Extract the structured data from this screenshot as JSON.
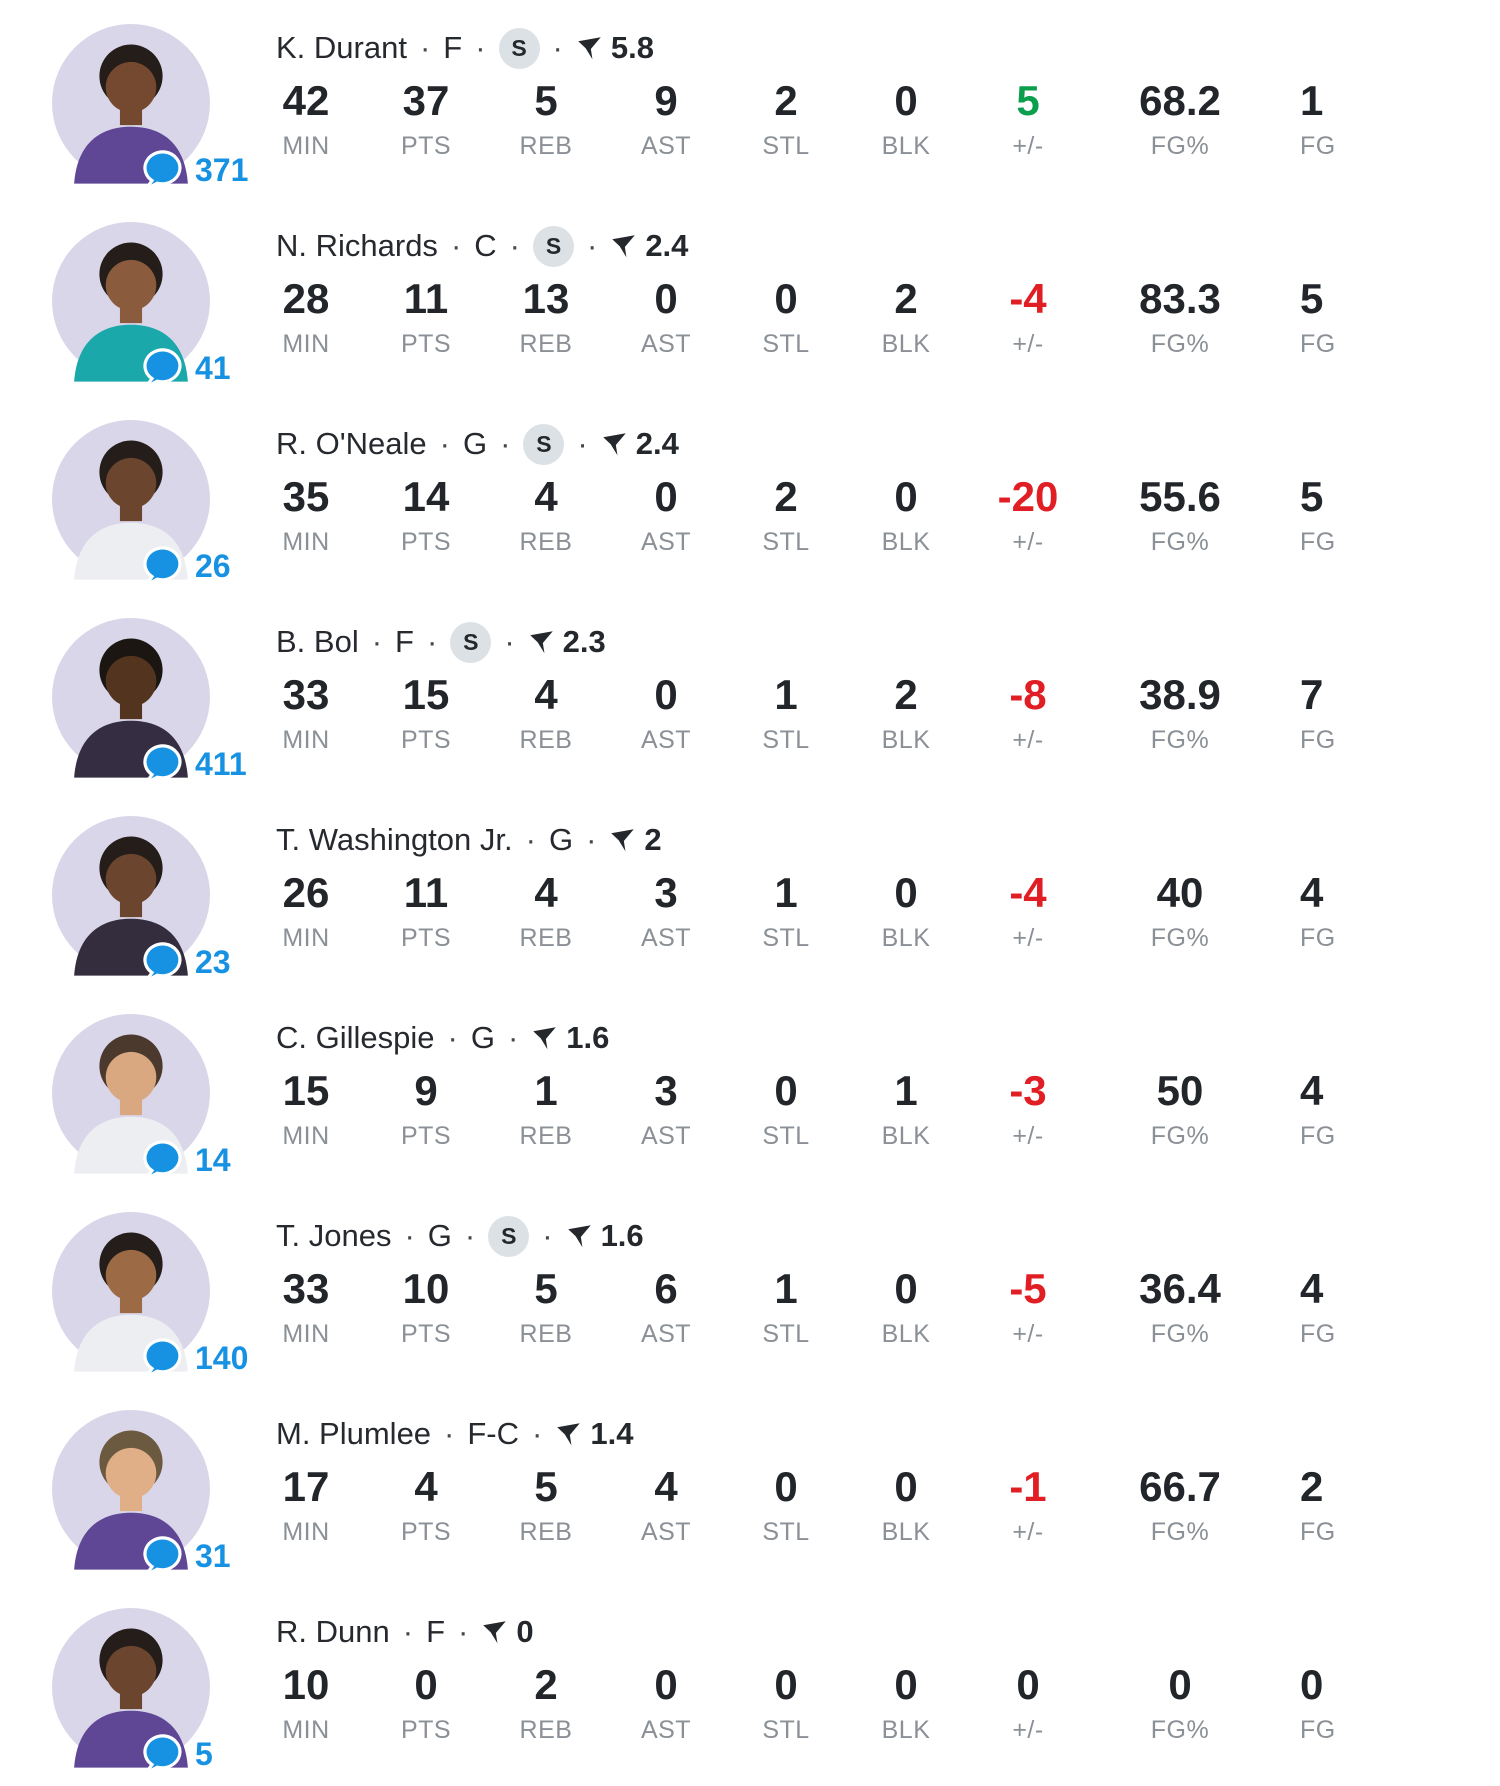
{
  "colors": {
    "positive": "#0b9e4d",
    "negative": "#e01e24",
    "comment_blue": "#1792e3",
    "label_gray": "#8a9096",
    "stat_dark": "#222529",
    "avatar_bg": "#d9d6e9",
    "starter_badge_bg": "#dbe1e5"
  },
  "starter_badge_label": "S",
  "separator": "·",
  "columns": [
    "MIN",
    "PTS",
    "REB",
    "AST",
    "STL",
    "BLK",
    "+/-",
    "FG%",
    "FG"
  ],
  "players": [
    {
      "name": "K. Durant",
      "position": "F",
      "starter": true,
      "fantasy": "5.8",
      "comments": "371",
      "pm_state": "pos",
      "values": [
        "42",
        "37",
        "5",
        "9",
        "2",
        "0",
        "5",
        "68.2",
        "1"
      ],
      "avatar": {
        "skin": "#74492f",
        "hair": "#241d19",
        "jersey": "#5f4796"
      }
    },
    {
      "name": "N. Richards",
      "position": "C",
      "starter": true,
      "fantasy": "2.4",
      "comments": "41",
      "pm_state": "neg",
      "values": [
        "28",
        "11",
        "13",
        "0",
        "0",
        "2",
        "-4",
        "83.3",
        "5"
      ],
      "avatar": {
        "skin": "#8a5c3d",
        "hair": "#241d19",
        "jersey": "#1ba8ab"
      }
    },
    {
      "name": "R. O'Neale",
      "position": "G",
      "starter": true,
      "fantasy": "2.4",
      "comments": "26",
      "pm_state": "neg",
      "values": [
        "35",
        "14",
        "4",
        "0",
        "2",
        "0",
        "-20",
        "55.6",
        "5"
      ],
      "avatar": {
        "skin": "#6b452e",
        "hair": "#241d19",
        "jersey": "#edeef2"
      }
    },
    {
      "name": "B. Bol",
      "position": "F",
      "starter": true,
      "fantasy": "2.3",
      "comments": "411",
      "pm_state": "neg",
      "values": [
        "33",
        "15",
        "4",
        "0",
        "1",
        "2",
        "-8",
        "38.9",
        "7"
      ],
      "avatar": {
        "skin": "#53351f",
        "hair": "#1c1613",
        "jersey": "#352e42"
      }
    },
    {
      "name": "T. Washington Jr.",
      "position": "G",
      "starter": false,
      "fantasy": "2",
      "comments": "23",
      "pm_state": "neg",
      "values": [
        "26",
        "11",
        "4",
        "3",
        "1",
        "0",
        "-4",
        "40",
        "4"
      ],
      "avatar": {
        "skin": "#6b452e",
        "hair": "#241d19",
        "jersey": "#332d3d"
      }
    },
    {
      "name": "C. Gillespie",
      "position": "G",
      "starter": false,
      "fantasy": "1.6",
      "comments": "14",
      "pm_state": "neg",
      "values": [
        "15",
        "9",
        "1",
        "3",
        "0",
        "1",
        "-3",
        "50",
        "4"
      ],
      "avatar": {
        "skin": "#d9a880",
        "hair": "#4a392c",
        "jersey": "#edeef2"
      }
    },
    {
      "name": "T. Jones",
      "position": "G",
      "starter": true,
      "fantasy": "1.6",
      "comments": "140",
      "pm_state": "neg",
      "values": [
        "33",
        "10",
        "5",
        "6",
        "1",
        "0",
        "-5",
        "36.4",
        "4"
      ],
      "avatar": {
        "skin": "#9c6a44",
        "hair": "#241d19",
        "jersey": "#edeef2"
      }
    },
    {
      "name": "M. Plumlee",
      "position": "F-C",
      "starter": false,
      "fantasy": "1.4",
      "comments": "31",
      "pm_state": "neg",
      "values": [
        "17",
        "4",
        "5",
        "4",
        "0",
        "0",
        "-1",
        "66.7",
        "2"
      ],
      "avatar": {
        "skin": "#e0af88",
        "hair": "#6b5a3f",
        "jersey": "#5f4796"
      }
    },
    {
      "name": "R. Dunn",
      "position": "F",
      "starter": false,
      "fantasy": "0",
      "comments": "5",
      "pm_state": "zero",
      "values": [
        "10",
        "0",
        "2",
        "0",
        "0",
        "0",
        "0",
        "0",
        "0"
      ],
      "avatar": {
        "skin": "#6b452e",
        "hair": "#241d19",
        "jersey": "#5f4796"
      }
    }
  ]
}
